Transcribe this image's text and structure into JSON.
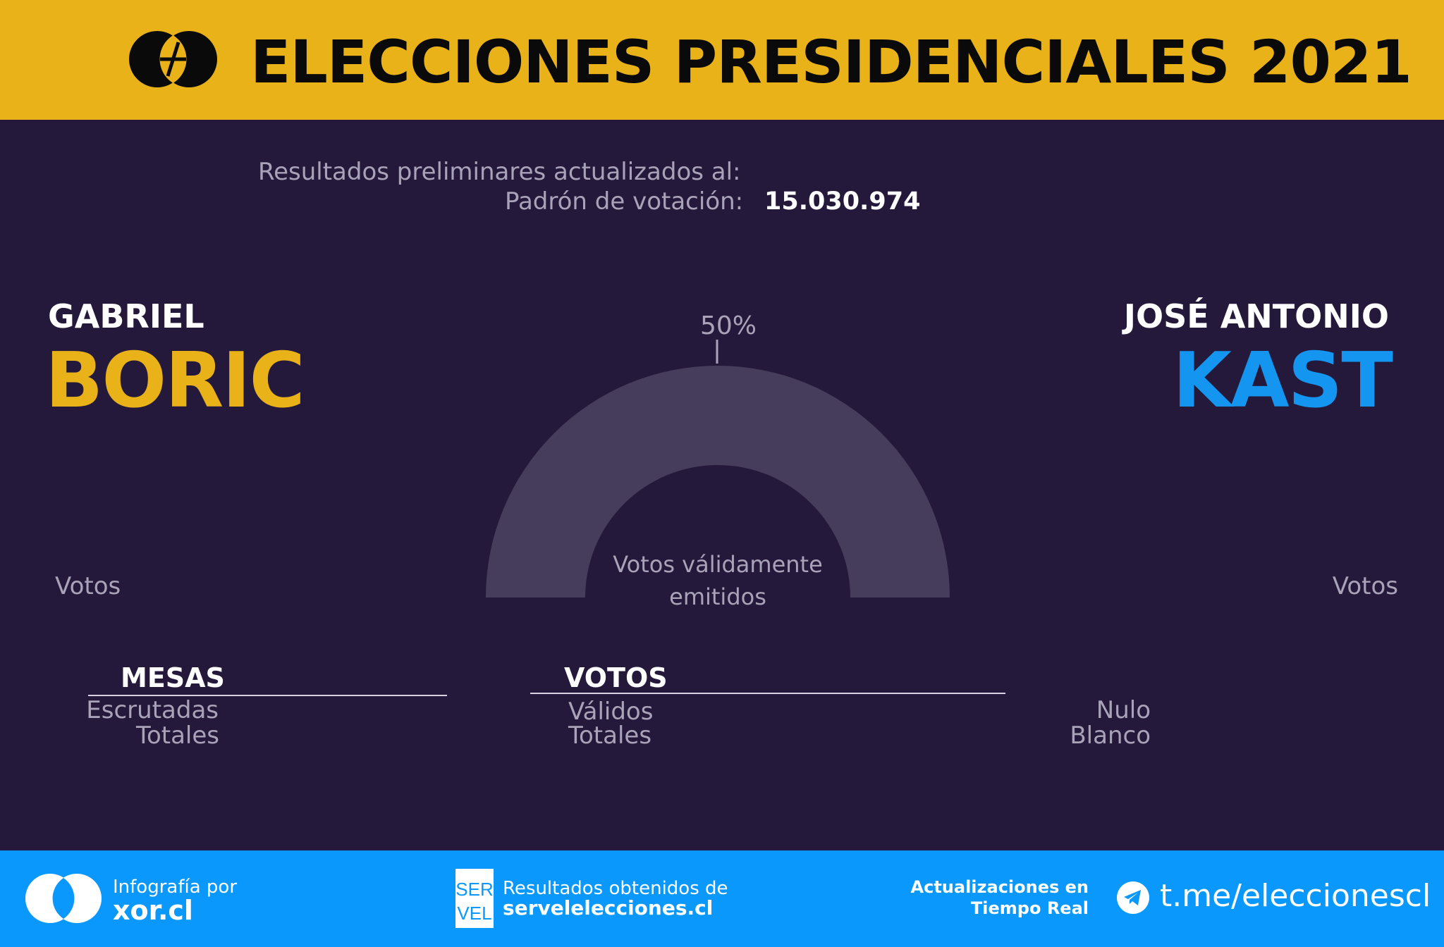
{
  "header": {
    "title": "ELECCIONES PRESIDENCIALES 2021",
    "logo_icon": "venn-slash-logo-icon"
  },
  "info": {
    "updated_label": "Resultados preliminares actualizados al:",
    "padron_label": "Padrón de votación:",
    "padron_value": "15.030.974"
  },
  "candidates": {
    "left": {
      "first_name": "GABRIEL",
      "last_name": "BORIC",
      "votes_label": "Votos",
      "color": "#e9b218"
    },
    "right": {
      "first_name": "JOSÉ ANTONIO",
      "last_name": "KAST",
      "votes_label": "Votos",
      "color": "#1495f0"
    }
  },
  "gauge": {
    "half_label": "50%",
    "center_label_line1": "Votos válidamente",
    "center_label_line2": "emitidos",
    "track_color": "#463c5c"
  },
  "mesas": {
    "title": "MESAS",
    "escrutadas_label": "Escrutadas",
    "totales_label": "Totales"
  },
  "votos": {
    "title": "VOTOS",
    "validos_label": "Válidos",
    "totales_label": "Totales",
    "nulo_label": "Nulo",
    "blanco_label": "Blanco"
  },
  "footer": {
    "infografia_label": "Infografía por",
    "xor_label": "xor.cl",
    "servel_logo_top": "SER",
    "servel_logo_bottom": "VEL",
    "resultados_label": "Resultados obtenidos de",
    "servel_url": "servelelecciones.cl",
    "actualizaciones_line1": "Actualizaciones en",
    "actualizaciones_line2": "Tiempo Real",
    "telegram_url": "t.me/eleccionescl",
    "telegram_icon": "telegram-icon"
  },
  "colors": {
    "background": "#24193b",
    "header": "#e9b218",
    "footer": "#0a98fc",
    "muted_text": "#a9a3b9"
  }
}
